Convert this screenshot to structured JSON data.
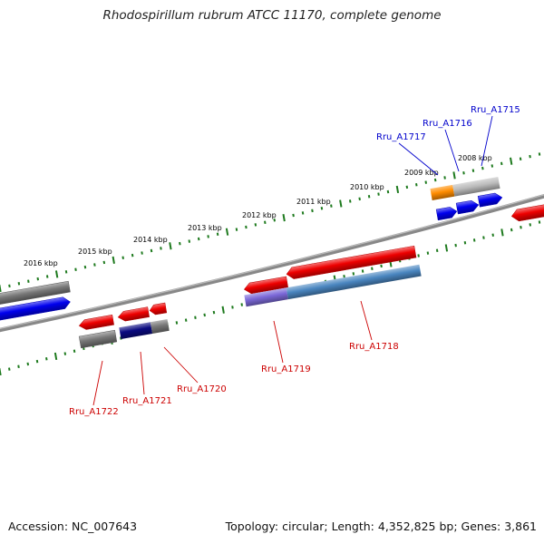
{
  "title": "Rhodospirillum rubrum ATCC 11170, complete genome",
  "footer": {
    "accession": "Accession: NC_007643",
    "summary": "Topology: circular; Length: 4,352,825 bp; Genes: 3,861"
  },
  "colors": {
    "backbone": "#888888",
    "tick": "#1e7a1e",
    "forward_label": "#0000cc",
    "reverse_label": "#cc0000",
    "gene_red": "#ee0000",
    "gene_blue": "#0000ee",
    "gene_gray": "#777777",
    "gene_orange": "#ff8c00",
    "gene_lightgray": "#bbbbbb",
    "gene_steelblue": "#4a86c0",
    "gene_purple": "#7b68d8",
    "gene_navy": "#0a0a80"
  },
  "ruler": {
    "unit": "kbp",
    "labels": [
      "2016 kbp",
      "2015 kbp",
      "2014 kbp",
      "2013 kbp",
      "2012 kbp",
      "2011 kbp",
      "2010 kbp",
      "2009 kbp",
      "2008 kbp"
    ]
  },
  "gene_labels": {
    "forward": [
      "Rru_A1717",
      "Rru_A1716",
      "Rru_A1715"
    ],
    "reverse": [
      "Rru_A1722",
      "Rru_A1721",
      "Rru_A1720",
      "Rru_A1719",
      "Rru_A1718"
    ]
  }
}
